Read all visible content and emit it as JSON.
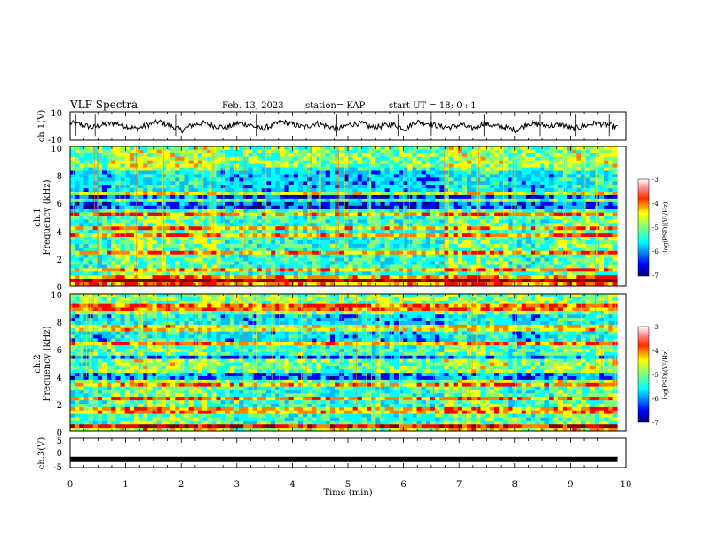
{
  "header": {
    "title": "VLF Spectra",
    "date": "Feb. 13, 2023",
    "station": "station= KAP",
    "start": "start  UT =   18: 0  : 1"
  },
  "chart_data": [
    {
      "type": "line",
      "name": "ch1-waveform",
      "ylabel": "ch.1(V)",
      "ylim": [
        -10,
        10
      ],
      "yticks": [
        10,
        -10
      ],
      "x_range_min": [
        0,
        9.85
      ],
      "trend": [
        2,
        1,
        -1,
        1,
        2,
        0,
        -2,
        1,
        3,
        0,
        -3,
        1,
        2,
        0,
        -1,
        2,
        1,
        -2,
        0,
        3,
        1,
        -1,
        2,
        0,
        -2,
        1,
        2,
        -1,
        0,
        1,
        -2,
        3,
        2,
        0,
        -1,
        1,
        -2,
        2,
        0,
        -1,
        -3,
        2,
        1,
        0,
        1,
        -2,
        0,
        2,
        1,
        -1
      ],
      "color": "#000000"
    },
    {
      "type": "heatmap",
      "name": "ch1-spectrogram",
      "ylabel_line1": "ch.1",
      "ylabel_line2": "Frequency (kHz)",
      "ylim_khz": [
        0,
        10
      ],
      "yticks": [
        0,
        2,
        4,
        6,
        8,
        10
      ],
      "colorbar": {
        "label": "log(PSD)(V²/Hz)",
        "min": -7,
        "max": -3,
        "ticks": [
          -3,
          -4,
          -5,
          -6,
          -7
        ]
      },
      "segments_min": [
        0,
        0.75,
        2.7,
        6.7,
        7.9,
        8.7,
        9.85
      ],
      "emission_bands_khz": [
        0.3,
        1.2,
        2.3,
        3.6,
        4.1,
        5.2,
        6.1,
        6.6
      ]
    },
    {
      "type": "heatmap",
      "name": "ch2-spectrogram",
      "ylabel_line1": "ch.2",
      "ylabel_line2": "Frequency (kHz)",
      "ylim_khz": [
        0,
        10
      ],
      "yticks": [
        0,
        2,
        4,
        6,
        8,
        10
      ],
      "colorbar": {
        "label": "log(PSD)(V²/Hz)",
        "min": -7,
        "max": -3,
        "ticks": [
          -3,
          -4,
          -5,
          -6,
          -7
        ]
      },
      "segments_min": [
        0,
        0.75,
        2.7,
        6.7,
        7.9,
        8.7,
        9.85
      ],
      "emission_bands_khz": [
        0.3,
        1.5,
        2.3,
        3.5,
        4.5,
        5.0,
        6.3,
        7.5,
        9.0
      ]
    },
    {
      "type": "line",
      "name": "ch3-level",
      "ylabel": "ch.3(V)",
      "ylim": [
        -5,
        5
      ],
      "yticks": [
        5,
        0,
        -5
      ],
      "x": [
        0,
        9.85
      ],
      "y": [
        -2.2,
        -2.2
      ],
      "color": "#000000"
    }
  ],
  "xaxis": {
    "label": "Time  (min)",
    "range": [
      0,
      10
    ],
    "ticks": [
      "0",
      "1",
      "2",
      "3",
      "4",
      "5",
      "6",
      "7",
      "8",
      "9",
      "10"
    ]
  },
  "colors": {
    "jet": [
      "#00007f",
      "#0000ff",
      "#00bfff",
      "#00ffff",
      "#7fff7f",
      "#ffff00",
      "#ff7f00",
      "#ff0000",
      "#7f0000"
    ]
  }
}
